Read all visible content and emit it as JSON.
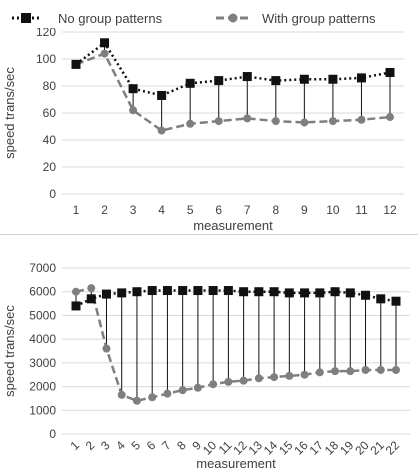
{
  "legend": {
    "series": [
      {
        "name": "No group patterns"
      },
      {
        "name": "With group patterns"
      }
    ]
  },
  "colors": {
    "series_a": "#111111",
    "series_b": "#7f7f7f",
    "drop_line": "#111111",
    "grid": "#d9d9d9",
    "axis_text": "#404040"
  },
  "chart_data": [
    {
      "type": "line",
      "xlabel": "measurement",
      "ylabel": "speed trans/sec",
      "ylim": [
        0,
        120
      ],
      "ytick_step": 20,
      "grid": true,
      "drop_lines": true,
      "x": [
        "1",
        "2",
        "3",
        "4",
        "5",
        "6",
        "7",
        "8",
        "9",
        "10",
        "11",
        "12"
      ],
      "series": [
        {
          "name": "No group patterns",
          "marker": "square",
          "line": "dotted",
          "values": [
            96,
            112,
            78,
            73,
            82,
            84,
            87,
            84,
            85,
            85,
            86,
            90
          ]
        },
        {
          "name": "With group patterns",
          "marker": "circle",
          "line": "dashed",
          "values": [
            96,
            104,
            62,
            47,
            52,
            54,
            56,
            54,
            53,
            54,
            55,
            57
          ]
        }
      ]
    },
    {
      "type": "line",
      "xlabel": "measurement",
      "ylabel": "speed trans/sec",
      "ylim": [
        0,
        7000
      ],
      "ytick_step": 1000,
      "grid": true,
      "drop_lines": true,
      "x": [
        "1",
        "2",
        "3",
        "4",
        "5",
        "6",
        "7",
        "8",
        "9",
        "10",
        "11",
        "12",
        "13",
        "14",
        "15",
        "16",
        "17",
        "18",
        "19",
        "20",
        "21",
        "22"
      ],
      "series": [
        {
          "name": "No group patterns",
          "marker": "square",
          "line": "dotted",
          "values": [
            5400,
            5700,
            5900,
            5950,
            6000,
            6050,
            6050,
            6050,
            6050,
            6050,
            6050,
            6000,
            6000,
            6000,
            5950,
            5950,
            5950,
            6000,
            5950,
            5850,
            5700,
            5600
          ]
        },
        {
          "name": "With group patterns",
          "marker": "circle",
          "line": "dashed",
          "values": [
            6000,
            6150,
            3600,
            1650,
            1400,
            1550,
            1700,
            1850,
            1950,
            2100,
            2200,
            2250,
            2350,
            2400,
            2450,
            2500,
            2600,
            2650,
            2650,
            2700,
            2700,
            2700
          ]
        }
      ]
    }
  ]
}
